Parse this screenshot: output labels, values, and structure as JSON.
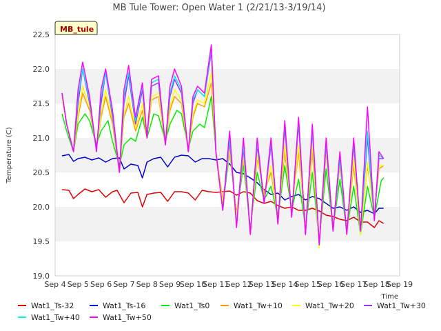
{
  "chart_data": {
    "type": "line",
    "title": "MB Tule Tower: Open Water 1 (2/21/13-3/19/14)",
    "xlabel": "Time",
    "ylabel": "Temperature (C)",
    "badge": "MB_tule",
    "xlim": [
      4,
      19
    ],
    "ylim": [
      19.0,
      22.5
    ],
    "x_ticks": [
      4,
      5,
      6,
      7,
      8,
      9,
      10,
      11,
      12,
      13,
      14,
      15,
      16,
      17,
      18,
      19
    ],
    "x_tick_labels": [
      "Sep 4",
      "Sep 5",
      "Sep 6",
      "Sep 7",
      "Sep 8",
      "Sep 9",
      "Sep 10",
      "Sep 11",
      "Sep 12",
      "Sep 13",
      "Sep 14",
      "Sep 15",
      "Sep 16",
      "Sep 17",
      "Sep 18",
      "Sep 19"
    ],
    "y_ticks": [
      19.0,
      19.5,
      20.0,
      20.5,
      21.0,
      21.5,
      22.0,
      22.5
    ],
    "y_tick_labels": [
      "19.0",
      "19.5",
      "20.0",
      "20.5",
      "21.0",
      "21.5",
      "22.0",
      "22.5"
    ],
    "grid": "horizontal bands",
    "legend_position": "bottom",
    "series": [
      {
        "name": "Wat1_Ts-32",
        "color": "#dd0000",
        "x": [
          4.3,
          4.6,
          4.8,
          5.0,
          5.3,
          5.6,
          5.9,
          6.2,
          6.5,
          6.7,
          7.0,
          7.3,
          7.6,
          7.8,
          8.0,
          8.3,
          8.6,
          8.9,
          9.2,
          9.5,
          9.8,
          10.1,
          10.4,
          10.7,
          11.0,
          11.3,
          11.6,
          11.9,
          12.2,
          12.5,
          12.8,
          13.1,
          13.4,
          13.7,
          14.0,
          14.3,
          14.6,
          14.9,
          15.2,
          15.5,
          15.8,
          16.1,
          16.4,
          16.7,
          17.0,
          17.3,
          17.6,
          17.9,
          18.1,
          18.3
        ],
        "y": [
          20.25,
          20.24,
          20.12,
          20.18,
          20.26,
          20.22,
          20.25,
          20.14,
          20.22,
          20.24,
          20.06,
          20.2,
          20.21,
          20.0,
          20.18,
          20.2,
          20.21,
          20.08,
          20.22,
          20.22,
          20.2,
          20.1,
          20.24,
          20.22,
          20.21,
          20.22,
          20.23,
          20.17,
          20.22,
          20.2,
          20.09,
          20.05,
          20.08,
          20.02,
          19.98,
          20.0,
          19.95,
          19.95,
          19.98,
          19.94,
          19.88,
          19.86,
          19.82,
          19.8,
          19.85,
          19.78,
          19.78,
          19.7,
          19.8,
          19.76
        ]
      },
      {
        "name": "Wat1_Ts-16",
        "color": "#0000cc",
        "x": [
          4.3,
          4.6,
          4.8,
          5.0,
          5.3,
          5.6,
          5.9,
          6.2,
          6.5,
          6.8,
          7.0,
          7.3,
          7.6,
          7.8,
          8.0,
          8.3,
          8.6,
          8.9,
          9.2,
          9.5,
          9.8,
          10.1,
          10.4,
          10.7,
          11.0,
          11.3,
          11.6,
          11.9,
          12.2,
          12.5,
          12.8,
          13.1,
          13.4,
          13.7,
          14.0,
          14.3,
          14.6,
          14.9,
          15.2,
          15.5,
          15.8,
          16.1,
          16.4,
          16.7,
          17.0,
          17.3,
          17.6,
          17.9,
          18.1,
          18.3
        ],
        "y": [
          20.74,
          20.76,
          20.66,
          20.7,
          20.72,
          20.68,
          20.71,
          20.65,
          20.7,
          20.71,
          20.55,
          20.62,
          20.6,
          20.42,
          20.65,
          20.7,
          20.72,
          20.58,
          20.72,
          20.75,
          20.74,
          20.65,
          20.7,
          20.7,
          20.68,
          20.7,
          20.62,
          20.5,
          20.48,
          20.42,
          20.35,
          20.25,
          20.18,
          20.2,
          20.1,
          20.15,
          20.18,
          20.1,
          20.15,
          20.12,
          20.05,
          19.98,
          20.0,
          19.95,
          20.0,
          19.92,
          19.95,
          19.9,
          19.98,
          19.98
        ]
      },
      {
        "name": "Wat1_Ts0",
        "color": "#00ee00",
        "x": [
          4.3,
          4.5,
          4.8,
          5.0,
          5.3,
          5.5,
          5.8,
          6.0,
          6.3,
          6.5,
          6.8,
          7.0,
          7.3,
          7.5,
          7.8,
          8.0,
          8.3,
          8.5,
          8.8,
          9.0,
          9.3,
          9.5,
          9.8,
          10.0,
          10.3,
          10.5,
          10.8,
          11.0,
          11.3,
          11.6,
          11.9,
          12.2,
          12.5,
          12.8,
          13.1,
          13.4,
          13.7,
          14.0,
          14.3,
          14.6,
          14.9,
          15.2,
          15.5,
          15.8,
          16.1,
          16.4,
          16.7,
          17.0,
          17.3,
          17.6,
          17.9,
          18.2,
          18.3
        ],
        "y": [
          21.35,
          21.1,
          20.8,
          21.2,
          21.35,
          21.25,
          20.9,
          21.1,
          21.25,
          20.95,
          20.6,
          20.9,
          21.0,
          20.95,
          21.3,
          21.0,
          21.35,
          21.32,
          20.95,
          21.2,
          21.4,
          21.35,
          20.85,
          21.1,
          21.2,
          21.15,
          21.6,
          20.8,
          20.0,
          20.8,
          19.9,
          20.6,
          19.7,
          20.5,
          20.1,
          20.3,
          19.85,
          20.6,
          19.95,
          20.4,
          19.7,
          20.5,
          19.5,
          20.55,
          19.7,
          20.4,
          19.65,
          20.3,
          19.6,
          20.3,
          19.85,
          20.38,
          20.42
        ]
      },
      {
        "name": "Wat1_Tw+10",
        "color": "#ff9900",
        "x": [
          4.3,
          4.5,
          4.8,
          5.0,
          5.2,
          5.5,
          5.8,
          6.0,
          6.2,
          6.5,
          6.8,
          7.0,
          7.2,
          7.5,
          7.8,
          8.0,
          8.2,
          8.5,
          8.8,
          9.0,
          9.2,
          9.5,
          9.8,
          10.0,
          10.2,
          10.5,
          10.8,
          11.0,
          11.3,
          11.6,
          11.9,
          12.2,
          12.5,
          12.8,
          13.1,
          13.4,
          13.7,
          14.0,
          14.3,
          14.6,
          14.9,
          15.2,
          15.5,
          15.8,
          16.1,
          16.4,
          16.7,
          17.0,
          17.3,
          17.6,
          17.9,
          18.1,
          18.3
        ],
        "y": [
          21.6,
          21.2,
          20.8,
          21.3,
          21.65,
          21.4,
          20.85,
          21.3,
          21.6,
          21.2,
          20.5,
          21.3,
          21.5,
          21.1,
          21.4,
          21.0,
          21.55,
          21.6,
          20.9,
          21.4,
          21.6,
          21.5,
          20.8,
          21.3,
          21.5,
          21.45,
          21.8,
          20.8,
          20.1,
          20.8,
          19.9,
          20.7,
          19.65,
          20.7,
          20.2,
          20.5,
          19.85,
          20.8,
          19.95,
          20.8,
          19.7,
          20.8,
          19.45,
          20.8,
          19.7,
          20.6,
          19.65,
          20.6,
          19.65,
          20.6,
          19.9,
          20.55,
          20.6
        ]
      },
      {
        "name": "Wat1_Tw+20",
        "color": "#ffff00",
        "x": [
          4.3,
          4.5,
          4.8,
          5.0,
          5.2,
          5.5,
          5.8,
          6.0,
          6.2,
          6.5,
          6.8,
          7.0,
          7.2,
          7.5,
          7.8,
          8.0,
          8.2,
          8.5,
          8.8,
          9.0,
          9.2,
          9.5,
          9.8,
          10.0,
          10.2,
          10.5,
          10.8,
          11.0,
          11.3,
          11.6,
          11.9,
          12.2,
          12.5,
          12.8,
          13.1,
          13.4,
          13.7,
          14.0,
          14.3,
          14.6,
          14.9,
          15.2,
          15.5,
          15.8,
          16.1,
          16.4,
          16.7,
          17.0,
          17.3,
          17.6,
          17.9,
          18.1,
          18.3
        ],
        "y": [
          21.6,
          21.2,
          20.8,
          21.35,
          21.75,
          21.45,
          20.85,
          21.35,
          21.7,
          21.25,
          20.5,
          21.35,
          21.6,
          21.15,
          21.5,
          21.0,
          21.6,
          21.65,
          20.9,
          21.45,
          21.7,
          21.55,
          20.8,
          21.35,
          21.55,
          21.5,
          21.95,
          20.8,
          20.05,
          20.85,
          19.85,
          20.75,
          19.6,
          20.75,
          20.15,
          20.6,
          19.8,
          20.9,
          19.9,
          20.9,
          19.65,
          20.9,
          19.4,
          20.85,
          19.65,
          20.65,
          19.6,
          20.7,
          19.6,
          20.65,
          19.85,
          20.6,
          20.6
        ]
      },
      {
        "name": "Wat1_Tw+30",
        "color": "#9933ff",
        "x": [
          4.3,
          4.5,
          4.8,
          5.0,
          5.2,
          5.5,
          5.8,
          6.0,
          6.2,
          6.5,
          6.8,
          7.0,
          7.2,
          7.5,
          7.8,
          8.0,
          8.2,
          8.5,
          8.8,
          9.0,
          9.2,
          9.5,
          9.8,
          10.0,
          10.2,
          10.5,
          10.8,
          11.0,
          11.3,
          11.6,
          11.9,
          12.2,
          12.5,
          12.8,
          13.1,
          13.4,
          13.7,
          14.0,
          14.3,
          14.6,
          14.9,
          15.2,
          15.5,
          15.8,
          16.1,
          16.4,
          16.7,
          17.0,
          17.3,
          17.6,
          17.9,
          18.1,
          18.3
        ],
        "y": [
          21.65,
          21.2,
          20.8,
          21.5,
          22.0,
          21.5,
          20.85,
          21.5,
          21.95,
          21.3,
          20.5,
          21.5,
          21.9,
          21.2,
          21.7,
          21.0,
          21.75,
          21.8,
          20.9,
          21.6,
          21.85,
          21.65,
          20.8,
          21.5,
          21.7,
          21.6,
          22.25,
          20.8,
          19.95,
          20.95,
          19.75,
          20.85,
          19.6,
          20.9,
          20.05,
          20.9,
          19.75,
          21.15,
          19.85,
          21.2,
          19.6,
          21.1,
          19.45,
          20.9,
          19.65,
          20.7,
          19.6,
          20.9,
          19.65,
          21.0,
          19.8,
          20.7,
          20.7
        ]
      },
      {
        "name": "Wat1_Tw+40",
        "color": "#00eeee",
        "x": [
          4.3,
          4.5,
          4.8,
          5.0,
          5.2,
          5.5,
          5.8,
          6.0,
          6.2,
          6.5,
          6.8,
          7.0,
          7.2,
          7.5,
          7.8,
          8.0,
          8.2,
          8.5,
          8.8,
          9.0,
          9.2,
          9.5,
          9.8,
          10.0,
          10.2,
          10.5,
          10.8,
          11.0,
          11.3,
          11.6,
          11.9,
          12.2,
          12.5,
          12.8,
          13.1,
          13.4,
          13.7,
          14.0,
          14.3,
          14.6,
          14.9,
          15.2,
          15.5,
          15.8,
          16.1,
          16.4,
          16.7,
          17.0,
          17.3,
          17.6,
          17.9,
          18.1,
          18.3
        ],
        "y": [
          21.65,
          21.2,
          20.8,
          21.6,
          22.0,
          21.55,
          20.8,
          21.6,
          21.95,
          21.35,
          20.5,
          21.6,
          21.95,
          21.25,
          21.75,
          21.0,
          21.8,
          21.85,
          20.9,
          21.65,
          21.9,
          21.7,
          20.8,
          21.55,
          21.7,
          21.6,
          22.3,
          20.8,
          19.95,
          21.0,
          19.75,
          20.9,
          19.6,
          20.95,
          20.05,
          20.95,
          19.75,
          21.2,
          19.85,
          21.25,
          19.6,
          21.15,
          19.45,
          20.95,
          19.65,
          20.7,
          19.6,
          20.95,
          19.65,
          21.1,
          19.8,
          20.75,
          20.7
        ]
      },
      {
        "name": "Wat1_Tw+50",
        "color": "#ff00ff",
        "x": [
          4.3,
          4.5,
          4.8,
          5.0,
          5.2,
          5.5,
          5.8,
          6.0,
          6.2,
          6.5,
          6.8,
          7.0,
          7.2,
          7.5,
          7.8,
          8.0,
          8.2,
          8.5,
          8.8,
          9.0,
          9.2,
          9.5,
          9.8,
          10.0,
          10.2,
          10.5,
          10.8,
          11.0,
          11.3,
          11.6,
          11.9,
          12.2,
          12.5,
          12.8,
          13.1,
          13.4,
          13.7,
          14.0,
          14.3,
          14.6,
          14.9,
          15.2,
          15.5,
          15.8,
          16.1,
          16.4,
          16.7,
          17.0,
          17.3,
          17.6,
          17.9,
          18.1,
          18.3
        ],
        "y": [
          21.65,
          21.2,
          20.8,
          21.7,
          22.1,
          21.6,
          20.8,
          21.7,
          22.0,
          21.4,
          20.5,
          21.7,
          22.05,
          21.3,
          21.8,
          21.0,
          21.85,
          21.9,
          20.9,
          21.75,
          22.0,
          21.75,
          20.8,
          21.6,
          21.75,
          21.65,
          22.35,
          20.8,
          19.95,
          21.1,
          19.7,
          21.0,
          19.6,
          21.0,
          20.05,
          21.0,
          19.75,
          21.25,
          19.85,
          21.3,
          19.6,
          21.2,
          19.45,
          21.0,
          19.65,
          20.8,
          19.6,
          21.0,
          19.65,
          21.45,
          19.8,
          20.8,
          20.7
        ]
      }
    ]
  }
}
